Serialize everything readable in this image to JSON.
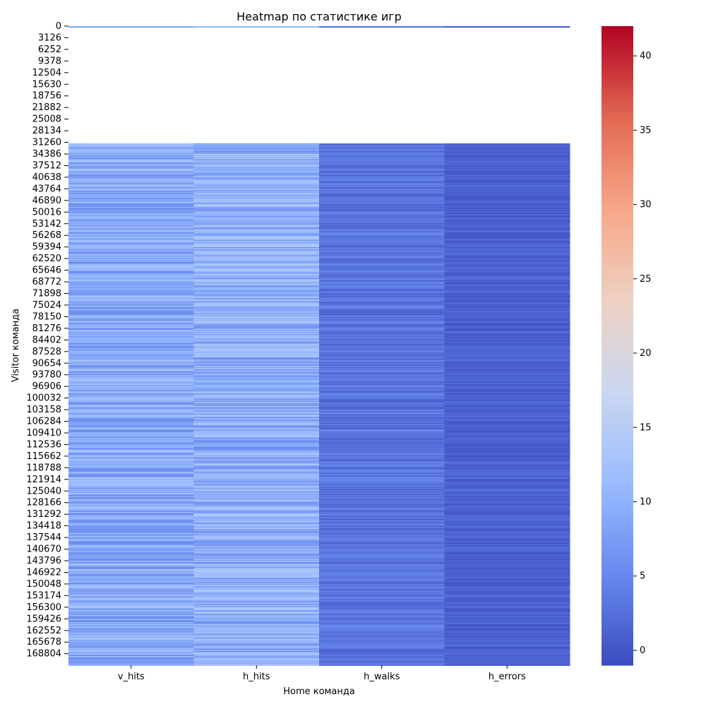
{
  "chart_data": {
    "type": "heatmap",
    "title": "Heatmap по статистике игр",
    "xlabel": "Home команда",
    "ylabel": "Visitor команда",
    "columns": [
      "v_hits",
      "h_hits",
      "h_walks",
      "h_errors"
    ],
    "y_ticks": [
      0,
      3126,
      6252,
      9378,
      12504,
      15630,
      18756,
      21882,
      25008,
      28134,
      31260,
      34386,
      37512,
      40638,
      43764,
      46890,
      50016,
      53142,
      56268,
      59394,
      62520,
      65646,
      68772,
      71898,
      75024,
      78150,
      81276,
      84402,
      87528,
      90654,
      93780,
      96906,
      100032,
      103158,
      106284,
      109410,
      112536,
      115662,
      118788,
      121914,
      125040,
      128166,
      131292,
      134418,
      137544,
      140670,
      143796,
      146922,
      150048,
      153174,
      156300,
      159426,
      162552,
      165678,
      168804
    ],
    "row_range": [
      0,
      171902
    ],
    "missing_range": [
      340,
      31550
    ],
    "colormap": "coolwarm",
    "color_scale": {
      "min": -1,
      "max": 42,
      "ticks": [
        0,
        5,
        10,
        15,
        20,
        25,
        30,
        35,
        40
      ],
      "stops": [
        "#3b4cc0",
        "#6788ee",
        "#9abbff",
        "#c9d7f0",
        "#edd1c2",
        "#f7a889",
        "#e26952",
        "#b40426"
      ]
    },
    "typical_values": {
      "v_hits": 9,
      "h_hits": 10,
      "h_walks": 3,
      "h_errors": 1
    },
    "grid": false
  }
}
